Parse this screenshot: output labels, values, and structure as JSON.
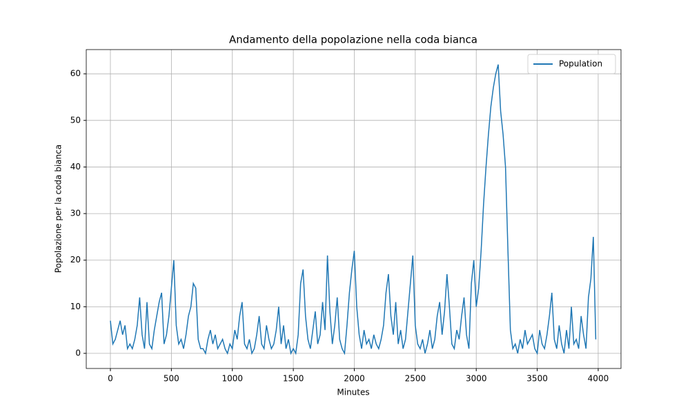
{
  "chart_data": {
    "type": "line",
    "title": "Andamento della popolazione nella coda bianca",
    "x_label": "Minutes",
    "y_label": "Popolazione per la coda bianca",
    "x": [
      0,
      20,
      40,
      60,
      80,
      100,
      120,
      140,
      160,
      180,
      200,
      220,
      240,
      260,
      280,
      300,
      320,
      340,
      360,
      380,
      400,
      420,
      440,
      460,
      480,
      500,
      520,
      540,
      560,
      580,
      600,
      620,
      640,
      660,
      680,
      700,
      720,
      740,
      760,
      780,
      800,
      820,
      840,
      860,
      880,
      900,
      920,
      940,
      960,
      980,
      1000,
      1020,
      1040,
      1060,
      1080,
      1100,
      1120,
      1140,
      1160,
      1180,
      1200,
      1220,
      1240,
      1260,
      1280,
      1300,
      1320,
      1340,
      1360,
      1380,
      1400,
      1420,
      1440,
      1460,
      1480,
      1500,
      1520,
      1540,
      1560,
      1580,
      1600,
      1620,
      1640,
      1660,
      1680,
      1700,
      1720,
      1740,
      1760,
      1780,
      1800,
      1820,
      1840,
      1860,
      1880,
      1900,
      1920,
      1940,
      1960,
      1980,
      2000,
      2020,
      2040,
      2060,
      2080,
      2100,
      2120,
      2140,
      2160,
      2180,
      2200,
      2220,
      2240,
      2260,
      2280,
      2300,
      2320,
      2340,
      2360,
      2380,
      2400,
      2420,
      2440,
      2460,
      2480,
      2500,
      2520,
      2540,
      2560,
      2580,
      2600,
      2620,
      2640,
      2660,
      2680,
      2700,
      2720,
      2740,
      2760,
      2780,
      2800,
      2820,
      2840,
      2860,
      2880,
      2900,
      2920,
      2940,
      2960,
      2980,
      3000,
      3020,
      3040,
      3060,
      3080,
      3100,
      3120,
      3140,
      3160,
      3180,
      3200,
      3220,
      3240,
      3260,
      3280,
      3300,
      3320,
      3340,
      3360,
      3380,
      3400,
      3420,
      3440,
      3460,
      3480,
      3500,
      3520,
      3540,
      3560,
      3580,
      3600,
      3620,
      3640,
      3660,
      3680,
      3700,
      3720,
      3740,
      3760,
      3780,
      3800,
      3820,
      3840,
      3860,
      3880,
      3900,
      3920,
      3940,
      3960,
      3980
    ],
    "series": [
      {
        "name": "Population",
        "color": "#1f77b4",
        "values": [
          7,
          2,
          3,
          5,
          7,
          4,
          6,
          1,
          2,
          1,
          3,
          6,
          12,
          4,
          1,
          11,
          2,
          1,
          5,
          8,
          11,
          13,
          2,
          4,
          8,
          14,
          20,
          6,
          2,
          3,
          1,
          4,
          8,
          10,
          15,
          14,
          3,
          1,
          1,
          0,
          3,
          5,
          2,
          4,
          1,
          2,
          3,
          1,
          0,
          2,
          1,
          5,
          3,
          8,
          11,
          2,
          1,
          3,
          0,
          1,
          4,
          8,
          2,
          1,
          6,
          3,
          1,
          2,
          5,
          10,
          2,
          6,
          1,
          3,
          0,
          1,
          0,
          4,
          15,
          18,
          8,
          3,
          1,
          5,
          9,
          2,
          4,
          11,
          5,
          21,
          9,
          2,
          6,
          12,
          3,
          1,
          0,
          6,
          13,
          18,
          22,
          10,
          4,
          1,
          5,
          2,
          3,
          1,
          4,
          2,
          1,
          3,
          6,
          13,
          17,
          8,
          4,
          11,
          2,
          5,
          1,
          3,
          9,
          15,
          21,
          6,
          2,
          1,
          3,
          0,
          2,
          5,
          1,
          3,
          8,
          11,
          4,
          9,
          17,
          10,
          2,
          1,
          5,
          3,
          8,
          12,
          4,
          1,
          15,
          20,
          10,
          14,
          22,
          32,
          40,
          47,
          53,
          57,
          60,
          62,
          52,
          47,
          40,
          22,
          5,
          1,
          2,
          0,
          3,
          1,
          5,
          2,
          3,
          4,
          1,
          0,
          5,
          2,
          1,
          4,
          8,
          13,
          3,
          1,
          6,
          2,
          0,
          5,
          1,
          10,
          2,
          3,
          1,
          8,
          4,
          1,
          12,
          16,
          25,
          3
        ]
      }
    ],
    "xlim": [
      -198,
      4187
    ],
    "ylim": [
      -3.25,
      65.2
    ],
    "xticks": [
      0,
      500,
      1000,
      1500,
      2000,
      2500,
      3000,
      3500,
      4000
    ],
    "yticks": [
      0,
      10,
      20,
      30,
      40,
      50,
      60
    ],
    "grid": true,
    "legend": "upper right"
  }
}
